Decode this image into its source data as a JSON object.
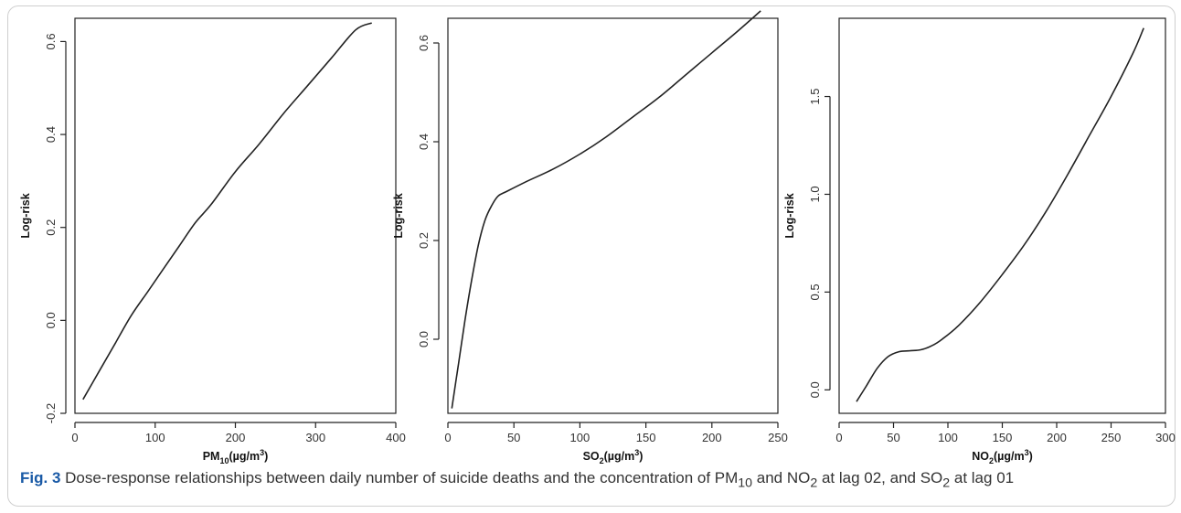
{
  "caption": {
    "fig_label": "Fig. 3",
    "text_a": " Dose-response relationships between daily number of suicide deaths and the concentration of PM",
    "sub_a": "10",
    "text_b": " and NO",
    "sub_b": "2",
    "text_c": " at lag 02, and SO",
    "sub_c": "2",
    "text_d": " at lag 01"
  },
  "chart_data": [
    {
      "type": "line",
      "xlabel_main": "PM",
      "xlabel_sub": "10",
      "xlabel_unit": "(µg/m",
      "xlabel_sup": "3",
      "xlabel_close": ")",
      "ylabel": "Log-risk",
      "xlim": [
        0,
        400
      ],
      "ylim": [
        -0.2,
        0.65
      ],
      "xticks": [
        0,
        100,
        200,
        300,
        400
      ],
      "yticks": [
        -0.2,
        0.0,
        0.2,
        0.4,
        0.6
      ],
      "ytick_labels": [
        "-0.2",
        "0.0",
        "0.2",
        "0.4",
        "0.6"
      ],
      "series": [
        {
          "x": [
            10,
            30,
            50,
            70,
            90,
            110,
            130,
            150,
            170,
            200,
            230,
            260,
            290,
            320,
            350,
            370
          ],
          "y": [
            -0.17,
            -0.11,
            -0.05,
            0.01,
            0.06,
            0.11,
            0.16,
            0.21,
            0.25,
            0.32,
            0.38,
            0.445,
            0.505,
            0.565,
            0.625,
            0.64
          ]
        }
      ]
    },
    {
      "type": "line",
      "xlabel_main": "SO",
      "xlabel_sub": "2",
      "xlabel_unit": "(µg/m",
      "xlabel_sup": "3",
      "xlabel_close": ")",
      "ylabel": "Log-risk",
      "xlim": [
        0,
        250
      ],
      "ylim": [
        -0.15,
        0.65
      ],
      "xticks": [
        0,
        50,
        100,
        150,
        200,
        250
      ],
      "yticks": [
        0.0,
        0.2,
        0.4,
        0.6
      ],
      "ytick_labels": [
        "0.0",
        "0.2",
        "0.4",
        "0.6"
      ],
      "series": [
        {
          "x": [
            3,
            8,
            13,
            18,
            23,
            28,
            33,
            38,
            45,
            60,
            80,
            100,
            120,
            140,
            160,
            180,
            200,
            220,
            237
          ],
          "y": [
            -0.14,
            -0.05,
            0.04,
            0.12,
            0.19,
            0.24,
            0.27,
            0.29,
            0.3,
            0.32,
            0.345,
            0.375,
            0.41,
            0.45,
            0.49,
            0.535,
            0.58,
            0.625,
            0.665
          ]
        }
      ]
    },
    {
      "type": "line",
      "xlabel_main": "NO",
      "xlabel_sub": "2",
      "xlabel_unit": "(µg/m",
      "xlabel_sup": "3",
      "xlabel_close": ")",
      "ylabel": "Log-risk",
      "xlim": [
        0,
        300
      ],
      "ylim": [
        -0.12,
        1.9
      ],
      "xticks": [
        0,
        50,
        100,
        150,
        200,
        250,
        300
      ],
      "yticks": [
        0.0,
        0.5,
        1.0,
        1.5
      ],
      "ytick_labels": [
        "0.0",
        "0.5",
        "1.0",
        "1.5"
      ],
      "series": [
        {
          "x": [
            16,
            25,
            35,
            45,
            55,
            65,
            75,
            85,
            95,
            110,
            130,
            150,
            170,
            190,
            210,
            230,
            250,
            270,
            280
          ],
          "y": [
            -0.06,
            0.02,
            0.11,
            0.17,
            0.195,
            0.2,
            0.205,
            0.225,
            0.26,
            0.33,
            0.45,
            0.59,
            0.74,
            0.91,
            1.1,
            1.3,
            1.5,
            1.72,
            1.85
          ]
        }
      ]
    }
  ]
}
